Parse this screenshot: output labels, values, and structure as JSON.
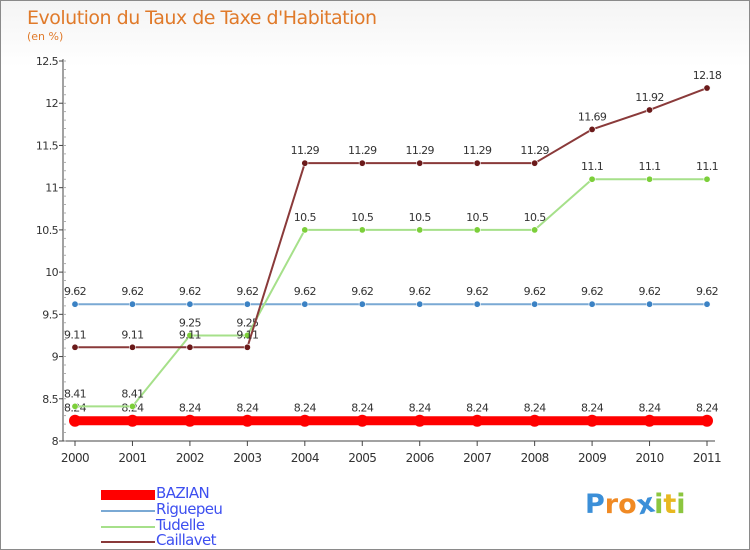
{
  "header": {
    "title": "Evolution du Taux de Taxe d'Habitation",
    "subtitle": "(en %)"
  },
  "chart_data": {
    "type": "line",
    "title": "Evolution du Taux de Taxe d'Habitation",
    "ylabel": "(en %)",
    "xlabel": "",
    "categories": [
      "2000",
      "2001",
      "2002",
      "2003",
      "2004",
      "2005",
      "2006",
      "2007",
      "2008",
      "2009",
      "2010",
      "2011"
    ],
    "ylim": [
      8,
      12.5
    ],
    "yticks": [
      "8",
      "8.5",
      "9",
      "9.5",
      "10",
      "10.5",
      "11",
      "11.5",
      "12",
      "12.5"
    ],
    "grid": false,
    "legend": "bottom-left",
    "series": [
      {
        "name": "BAZIAN",
        "color": "#ff0000",
        "marker": "#ff0000",
        "values": [
          8.24,
          8.24,
          8.24,
          8.24,
          8.24,
          8.24,
          8.24,
          8.24,
          8.24,
          8.24,
          8.24,
          8.24
        ],
        "labels": [
          "8.24",
          "8.24",
          "8.24",
          "8.24",
          "8.24",
          "8.24",
          "8.24",
          "8.24",
          "8.24",
          "8.24",
          "8.24",
          "8.24"
        ]
      },
      {
        "name": "Riguepeu",
        "color": "#7aa9d4",
        "marker": "#3b82c4",
        "values": [
          9.62,
          9.62,
          9.62,
          9.62,
          9.62,
          9.62,
          9.62,
          9.62,
          9.62,
          9.62,
          9.62,
          9.62
        ],
        "labels": [
          "9.62",
          "9.62",
          "9.62",
          "9.62",
          "9.62",
          "9.62",
          "9.62",
          "9.62",
          "9.62",
          "9.62",
          "9.62",
          "9.62"
        ]
      },
      {
        "name": "Tudelle",
        "color": "#a6e08a",
        "marker": "#7ccf3a",
        "values": [
          8.41,
          8.41,
          9.25,
          9.25,
          10.5,
          10.5,
          10.5,
          10.5,
          10.5,
          11.1,
          11.1,
          11.1
        ],
        "labels": [
          "8.41",
          "8.41",
          "9.25",
          "9.25",
          "10.5",
          "10.5",
          "10.5",
          "10.5",
          "10.5",
          "11.1",
          "11.1",
          "11.1"
        ]
      },
      {
        "name": "Caillavet",
        "color": "#8a3a3a",
        "marker": "#6b1a1a",
        "values": [
          9.11,
          9.11,
          9.11,
          9.11,
          11.29,
          11.29,
          11.29,
          11.29,
          11.29,
          11.69,
          11.92,
          12.18
        ],
        "labels": [
          "9.11",
          "9.11",
          "9.11",
          "9.11",
          "11.29",
          "11.29",
          "11.29",
          "11.29",
          "11.29",
          "11.69",
          "11.92",
          "12.18"
        ]
      }
    ]
  },
  "legend": {
    "items": [
      {
        "label": "BAZIAN",
        "color": "#ff0000"
      },
      {
        "label": "Riguepeu",
        "color": "#7aa9d4"
      },
      {
        "label": "Tudelle",
        "color": "#a6e08a"
      },
      {
        "label": "Caillavet",
        "color": "#8a3a3a"
      }
    ]
  },
  "logo": {
    "letters": [
      "P",
      "r",
      "o",
      "x",
      "i",
      "t",
      "i"
    ],
    "colors": [
      "#3b8fd8",
      "#f08a24",
      "#f08a24",
      "#3b8fd8",
      "#8cc63f",
      "#e8b820",
      "#8cc63f"
    ]
  }
}
